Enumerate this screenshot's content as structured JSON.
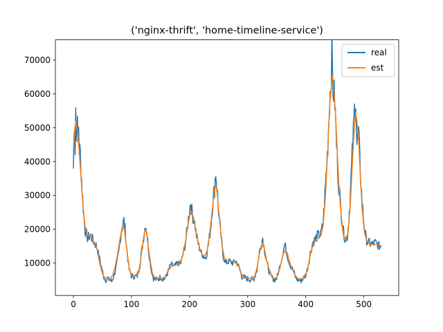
{
  "chart_data": {
    "type": "line",
    "title": "('nginx-thrift', 'home-timeline-service')",
    "xlabel": "",
    "ylabel": "",
    "xlim": [
      -31,
      560
    ],
    "ylim": [
      380,
      76000
    ],
    "xticks": [
      0,
      100,
      200,
      300,
      400,
      500
    ],
    "yticks": [
      10000,
      20000,
      30000,
      40000,
      50000,
      60000,
      70000
    ],
    "grid": false,
    "legend_position": "upper right",
    "series": [
      {
        "name": "real",
        "color": "#1f77b4",
        "noise": 1800,
        "points": [
          [
            0,
            38000
          ],
          [
            1,
            47000
          ],
          [
            2,
            53000
          ],
          [
            3,
            44000
          ],
          [
            4,
            56500
          ],
          [
            5,
            46000
          ],
          [
            6,
            54000
          ],
          [
            7,
            50000
          ],
          [
            8,
            45000
          ],
          [
            9,
            51000
          ],
          [
            10,
            44000
          ],
          [
            12,
            42000
          ],
          [
            14,
            35000
          ],
          [
            16,
            29000
          ],
          [
            18,
            24000
          ],
          [
            20,
            20000
          ],
          [
            24,
            17500
          ],
          [
            30,
            18000
          ],
          [
            36,
            16000
          ],
          [
            40,
            15000
          ],
          [
            44,
            12000
          ],
          [
            48,
            9000
          ],
          [
            52,
            6000
          ],
          [
            56,
            5000
          ],
          [
            62,
            5200
          ],
          [
            66,
            4500
          ],
          [
            70,
            6500
          ],
          [
            74,
            9000
          ],
          [
            78,
            13000
          ],
          [
            82,
            19000
          ],
          [
            85,
            21500
          ],
          [
            87,
            22500
          ],
          [
            89,
            20000
          ],
          [
            92,
            14000
          ],
          [
            96,
            8000
          ],
          [
            100,
            6200
          ],
          [
            106,
            6000
          ],
          [
            110,
            6200
          ],
          [
            114,
            9000
          ],
          [
            118,
            14000
          ],
          [
            122,
            19000
          ],
          [
            124,
            21500
          ],
          [
            126,
            20000
          ],
          [
            130,
            13000
          ],
          [
            134,
            8000
          ],
          [
            138,
            5500
          ],
          [
            144,
            5000
          ],
          [
            150,
            5800
          ],
          [
            156,
            5200
          ],
          [
            160,
            6000
          ],
          [
            164,
            8000
          ],
          [
            168,
            9500
          ],
          [
            174,
            9000
          ],
          [
            180,
            10000
          ],
          [
            184,
            9500
          ],
          [
            188,
            12000
          ],
          [
            192,
            15000
          ],
          [
            196,
            20000
          ],
          [
            200,
            26000
          ],
          [
            202,
            28000
          ],
          [
            205,
            24000
          ],
          [
            208,
            23000
          ],
          [
            212,
            18000
          ],
          [
            216,
            15000
          ],
          [
            220,
            13000
          ],
          [
            224,
            12000
          ],
          [
            228,
            11500
          ],
          [
            232,
            15000
          ],
          [
            236,
            20000
          ],
          [
            240,
            28000
          ],
          [
            243,
            32000
          ],
          [
            245,
            37000
          ],
          [
            247,
            33000
          ],
          [
            250,
            25000
          ],
          [
            254,
            18000
          ],
          [
            258,
            12000
          ],
          [
            262,
            10000
          ],
          [
            268,
            10500
          ],
          [
            274,
            10000
          ],
          [
            280,
            10500
          ],
          [
            286,
            8500
          ],
          [
            290,
            6000
          ],
          [
            296,
            5500
          ],
          [
            302,
            5200
          ],
          [
            310,
            5000
          ],
          [
            316,
            8000
          ],
          [
            320,
            13000
          ],
          [
            324,
            16000
          ],
          [
            326,
            17500
          ],
          [
            328,
            15000
          ],
          [
            332,
            11000
          ],
          [
            336,
            8000
          ],
          [
            340,
            6000
          ],
          [
            346,
            5000
          ],
          [
            350,
            5500
          ],
          [
            354,
            8000
          ],
          [
            358,
            11000
          ],
          [
            362,
            14000
          ],
          [
            364,
            15500
          ],
          [
            366,
            14000
          ],
          [
            370,
            11000
          ],
          [
            374,
            9000
          ],
          [
            378,
            8000
          ],
          [
            382,
            6000
          ],
          [
            386,
            5000
          ],
          [
            392,
            4800
          ],
          [
            396,
            5500
          ],
          [
            400,
            6500
          ],
          [
            404,
            9000
          ],
          [
            408,
            13000
          ],
          [
            412,
            16000
          ],
          [
            416,
            17000
          ],
          [
            420,
            18000
          ],
          [
            426,
            18500
          ],
          [
            430,
            22000
          ],
          [
            434,
            33000
          ],
          [
            438,
            45000
          ],
          [
            441,
            58000
          ],
          [
            443,
            63000
          ],
          [
            445,
            72000
          ],
          [
            447,
            62000
          ],
          [
            450,
            58000
          ],
          [
            453,
            45000
          ],
          [
            456,
            35000
          ],
          [
            460,
            27000
          ],
          [
            464,
            20000
          ],
          [
            468,
            17000
          ],
          [
            472,
            18000
          ],
          [
            476,
            28000
          ],
          [
            480,
            42000
          ],
          [
            484,
            55000
          ],
          [
            486,
            59500
          ],
          [
            488,
            45000
          ],
          [
            491,
            48000
          ],
          [
            494,
            37000
          ],
          [
            497,
            28000
          ],
          [
            500,
            22000
          ],
          [
            504,
            17000
          ],
          [
            508,
            16000
          ],
          [
            514,
            15500
          ],
          [
            520,
            16000
          ],
          [
            526,
            15000
          ],
          [
            530,
            15000
          ]
        ]
      },
      {
        "name": "est",
        "color": "#ff7f0e",
        "noise": 0,
        "points": [
          [
            0,
            44000
          ],
          [
            2,
            48000
          ],
          [
            4,
            52000
          ],
          [
            6,
            50000
          ],
          [
            8,
            47000
          ],
          [
            10,
            43000
          ],
          [
            12,
            38000
          ],
          [
            14,
            33000
          ],
          [
            16,
            28000
          ],
          [
            20,
            21000
          ],
          [
            24,
            18000
          ],
          [
            30,
            18000
          ],
          [
            36,
            16000
          ],
          [
            40,
            14500
          ],
          [
            44,
            11000
          ],
          [
            48,
            8000
          ],
          [
            52,
            6000
          ],
          [
            58,
            5500
          ],
          [
            64,
            5500
          ],
          [
            68,
            6500
          ],
          [
            72,
            9000
          ],
          [
            76,
            12500
          ],
          [
            80,
            17000
          ],
          [
            84,
            20500
          ],
          [
            86,
            21000
          ],
          [
            88,
            19500
          ],
          [
            92,
            14000
          ],
          [
            96,
            8500
          ],
          [
            100,
            6500
          ],
          [
            108,
            6200
          ],
          [
            112,
            7000
          ],
          [
            116,
            11000
          ],
          [
            120,
            16500
          ],
          [
            123,
            19500
          ],
          [
            125,
            19800
          ],
          [
            128,
            16000
          ],
          [
            132,
            11000
          ],
          [
            136,
            7000
          ],
          [
            140,
            5600
          ],
          [
            150,
            5500
          ],
          [
            158,
            5800
          ],
          [
            164,
            8000
          ],
          [
            170,
            9200
          ],
          [
            176,
            9300
          ],
          [
            182,
            9800
          ],
          [
            186,
            11000
          ],
          [
            190,
            13500
          ],
          [
            194,
            17500
          ],
          [
            198,
            22000
          ],
          [
            202,
            25500
          ],
          [
            206,
            24000
          ],
          [
            210,
            20500
          ],
          [
            214,
            17000
          ],
          [
            218,
            14000
          ],
          [
            222,
            12500
          ],
          [
            226,
            12000
          ],
          [
            230,
            13500
          ],
          [
            234,
            18000
          ],
          [
            238,
            24000
          ],
          [
            242,
            30500
          ],
          [
            245,
            33500
          ],
          [
            248,
            30000
          ],
          [
            252,
            22000
          ],
          [
            256,
            15000
          ],
          [
            260,
            11500
          ],
          [
            266,
            10500
          ],
          [
            276,
            10500
          ],
          [
            284,
            9500
          ],
          [
            288,
            7000
          ],
          [
            294,
            5700
          ],
          [
            304,
            5400
          ],
          [
            312,
            6000
          ],
          [
            316,
            8500
          ],
          [
            320,
            12500
          ],
          [
            324,
            15500
          ],
          [
            326,
            16000
          ],
          [
            329,
            14000
          ],
          [
            333,
            10500
          ],
          [
            338,
            7500
          ],
          [
            344,
            5500
          ],
          [
            350,
            5600
          ],
          [
            354,
            7500
          ],
          [
            358,
            10500
          ],
          [
            362,
            13000
          ],
          [
            365,
            13800
          ],
          [
            368,
            13000
          ],
          [
            372,
            10500
          ],
          [
            376,
            8500
          ],
          [
            382,
            6200
          ],
          [
            388,
            5200
          ],
          [
            394,
            5300
          ],
          [
            400,
            6500
          ],
          [
            404,
            9000
          ],
          [
            408,
            12500
          ],
          [
            412,
            15000
          ],
          [
            418,
            17000
          ],
          [
            426,
            18000
          ],
          [
            430,
            21000
          ],
          [
            434,
            30000
          ],
          [
            438,
            44000
          ],
          [
            441,
            56000
          ],
          [
            444,
            62000
          ],
          [
            446,
            65500
          ],
          [
            448,
            62000
          ],
          [
            451,
            55000
          ],
          [
            454,
            44000
          ],
          [
            457,
            33000
          ],
          [
            461,
            24000
          ],
          [
            465,
            18000
          ],
          [
            469,
            17000
          ],
          [
            473,
            19000
          ],
          [
            477,
            28000
          ],
          [
            481,
            42000
          ],
          [
            484,
            51000
          ],
          [
            486,
            54500
          ],
          [
            488,
            52000
          ],
          [
            491,
            46000
          ],
          [
            494,
            36000
          ],
          [
            497,
            26000
          ],
          [
            501,
            19000
          ],
          [
            505,
            16500
          ],
          [
            510,
            15500
          ],
          [
            516,
            15500
          ],
          [
            522,
            15500
          ],
          [
            530,
            15000
          ]
        ]
      }
    ]
  }
}
